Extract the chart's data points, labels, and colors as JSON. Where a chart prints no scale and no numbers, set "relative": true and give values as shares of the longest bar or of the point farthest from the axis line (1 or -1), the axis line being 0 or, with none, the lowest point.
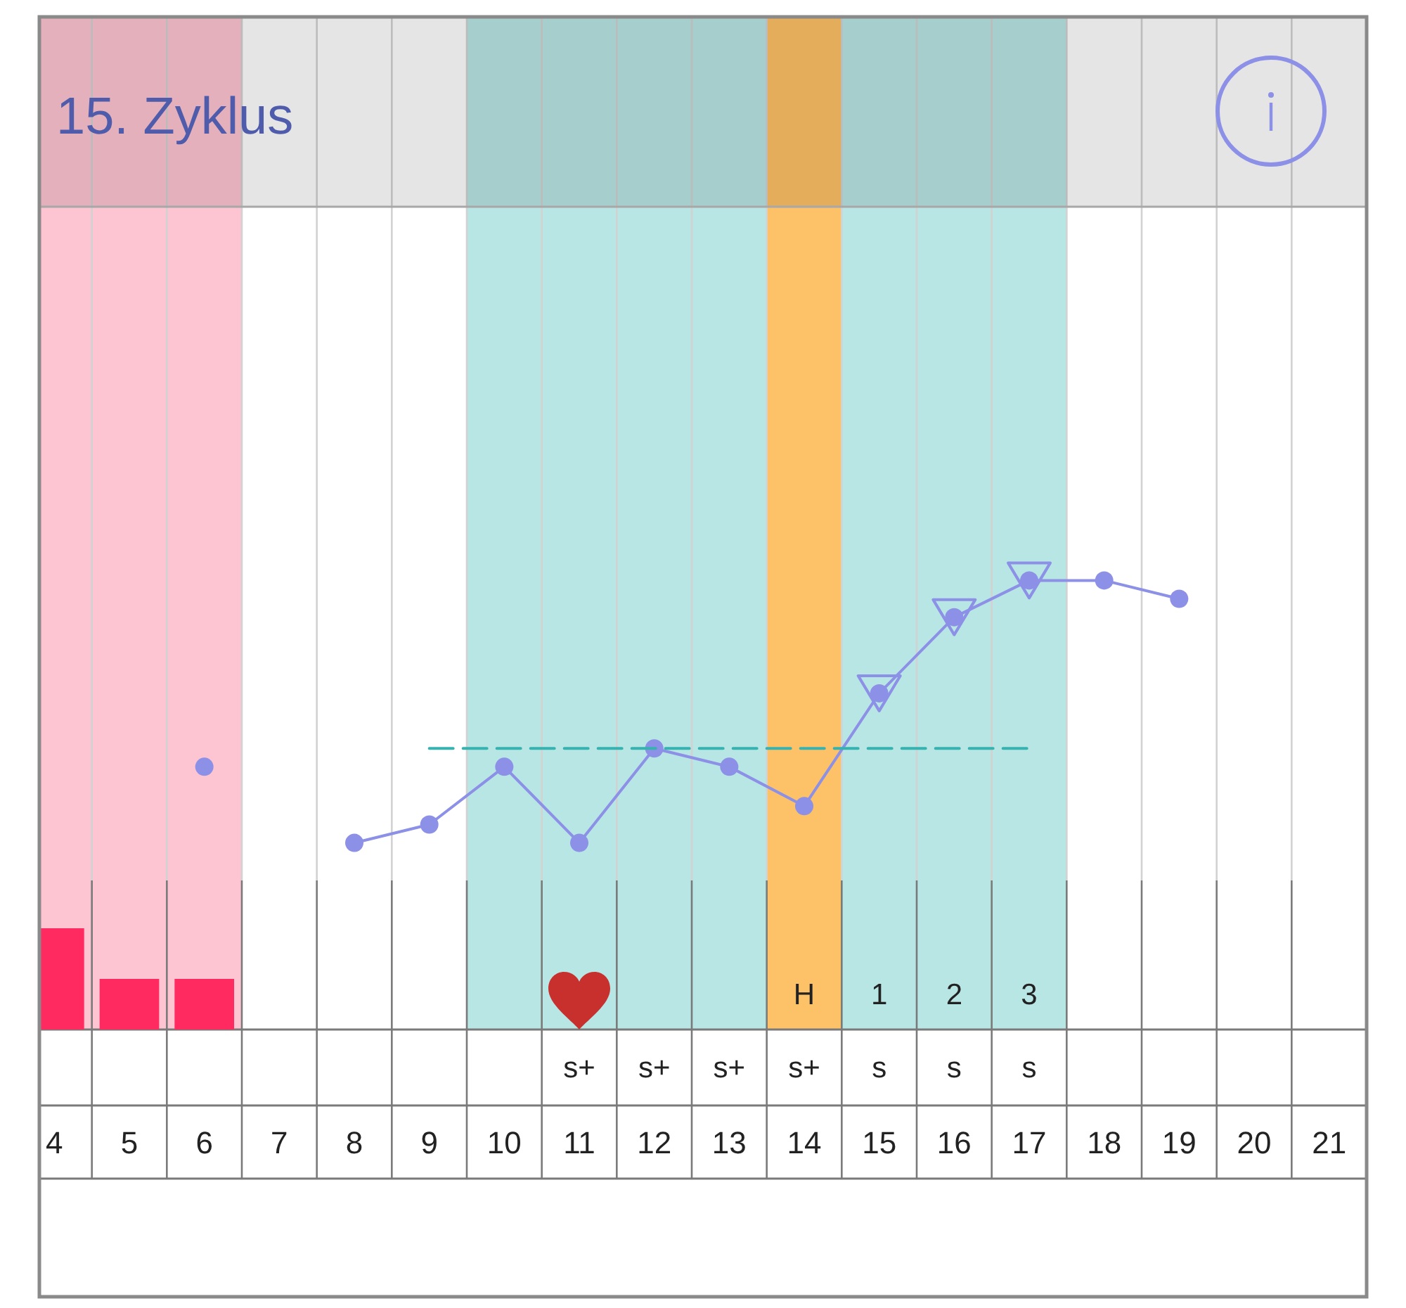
{
  "chart_data": [
    {
      "type": "line",
      "title": "15. Zyklus",
      "categories": [
        "4",
        "5",
        "6",
        "7",
        "8",
        "9",
        "10",
        "11",
        "12",
        "13",
        "14",
        "15",
        "16",
        "17",
        "18",
        "19",
        "20",
        "21"
      ],
      "relative": true,
      "series": [
        {
          "type": "scatter",
          "marker": "triangle",
          "color": "#8c90e6",
          "x": [
            "15",
            "16",
            "17"
          ],
          "values": [
            0.57,
            0.86,
            1
          ]
        },
        {
          "color": "#8c90e6",
          "values": [
            null,
            null,
            0.29,
            null,
            0,
            0.07,
            0.29,
            0,
            0.36,
            0.29,
            0.14,
            0.57,
            0.86,
            1,
            1,
            0.93,
            null,
            null
          ]
        },
        {
          "type": "line",
          "marker": "none",
          "line_style": "dashed",
          "color": "#36b2b0",
          "x": [
            "9",
            "17"
          ],
          "values": [
            0.36,
            0.36
          ]
        }
      ],
      "marker": "circle",
      "bands": [
        {
          "axis": "x",
          "from": "4",
          "to": "6",
          "color": "#fdc5d1"
        },
        {
          "axis": "x",
          "from": "10",
          "to": "17",
          "color": "#b8e6e5"
        },
        {
          "axis": "x",
          "from": "14",
          "to": "14",
          "color": "#fdc167"
        }
      ],
      "grid": "x"
    },
    {
      "type": "bar",
      "categories": [
        null,
        null,
        null,
        null,
        null,
        null,
        null,
        "s+",
        "s+",
        "s+",
        "H\ns+",
        "1\ns",
        "2\ns",
        "3\ns",
        null,
        null,
        null,
        null
      ],
      "relative": true,
      "values": [
        1,
        0.5,
        0.5,
        null,
        null,
        null,
        null,
        null,
        null,
        null,
        null,
        null,
        null,
        null,
        null,
        null,
        null,
        null
      ],
      "color": "#ff2a60",
      "grid": "x"
    }
  ]
}
